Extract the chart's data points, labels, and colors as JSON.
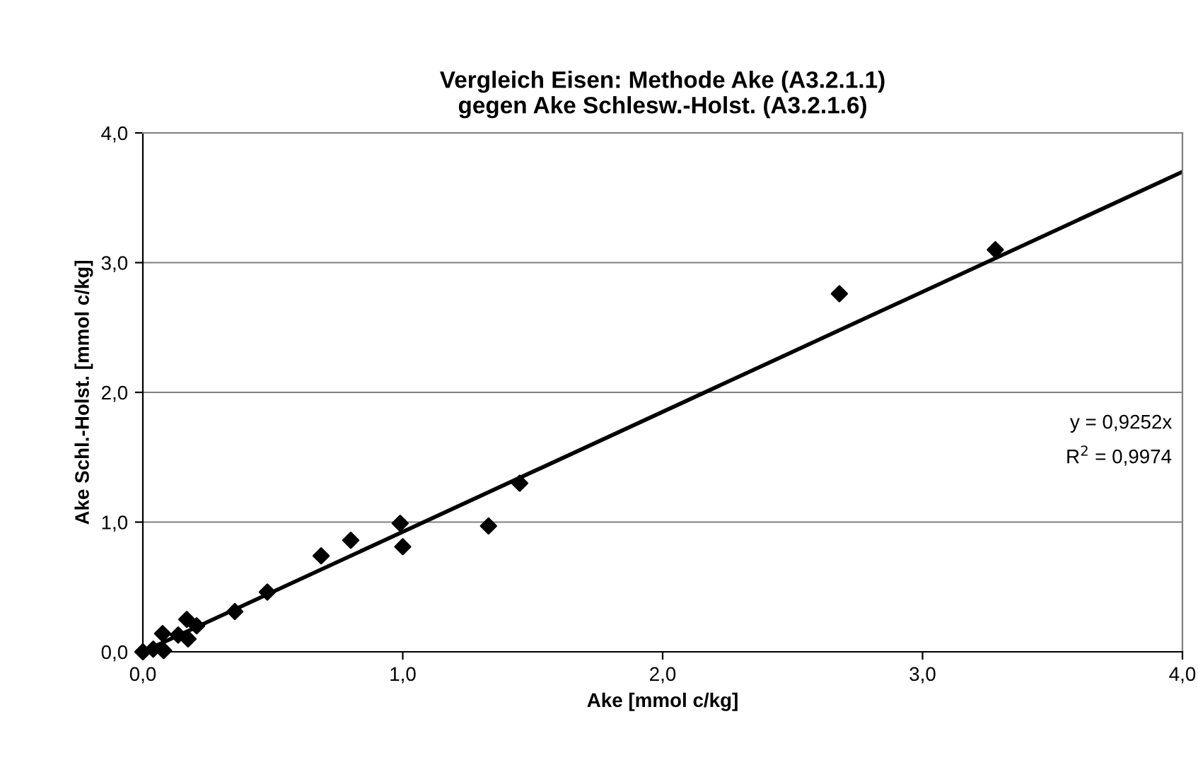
{
  "chart_data": {
    "type": "scatter",
    "title": "Vergleich Eisen: Methode Ake (A3.2.1.1)\ngegen Ake Schlesw.-Holst. (A3.2.1.6)",
    "xlabel": "Ake [mmol c/kg]",
    "ylabel": "Ake Schl.-Holst. [mmol c/kg]",
    "series": [
      {
        "color": "#000000",
        "marker": "diamond",
        "x": [
          0,
          0.04,
          0.08,
          0.076,
          0.136,
          0.169,
          0.174,
          0.207,
          0.354,
          0.479,
          0.686,
          0.8,
          0.99,
          1.0,
          1.33,
          1.45,
          2.68,
          3.28
        ],
        "values": [
          0,
          0.02,
          0.01,
          0.14,
          0.13,
          0.25,
          0.1,
          0.2,
          0.31,
          0.46,
          0.74,
          0.86,
          0.99,
          0.81,
          0.97,
          1.3,
          2.76,
          3.1
        ]
      },
      {
        "type": "line",
        "color": "#000000",
        "marker": "none",
        "line_style": "solid",
        "x": [
          0,
          4
        ],
        "values": [
          0,
          3.7
        ]
      }
    ],
    "annotations": [
      "y = 0,9252x",
      "R$^{2}$ = 0,9974"
    ],
    "xlim": [
      0,
      4
    ],
    "ylim": [
      0,
      4
    ],
    "xticks": [
      {
        "value": 0,
        "label": "0,0"
      },
      {
        "value": 1,
        "label": "1,0"
      },
      {
        "value": 2,
        "label": "2,0"
      },
      {
        "value": 3,
        "label": "3,0"
      },
      {
        "value": 4,
        "label": "4,0"
      }
    ],
    "yticks": [
      {
        "value": 0,
        "label": "0,0"
      },
      {
        "value": 1,
        "label": "1,0"
      },
      {
        "value": 2,
        "label": "2,0"
      },
      {
        "value": 3,
        "label": "3,0"
      },
      {
        "value": 4,
        "label": "4,0"
      }
    ],
    "grid": "y",
    "legend": false
  }
}
